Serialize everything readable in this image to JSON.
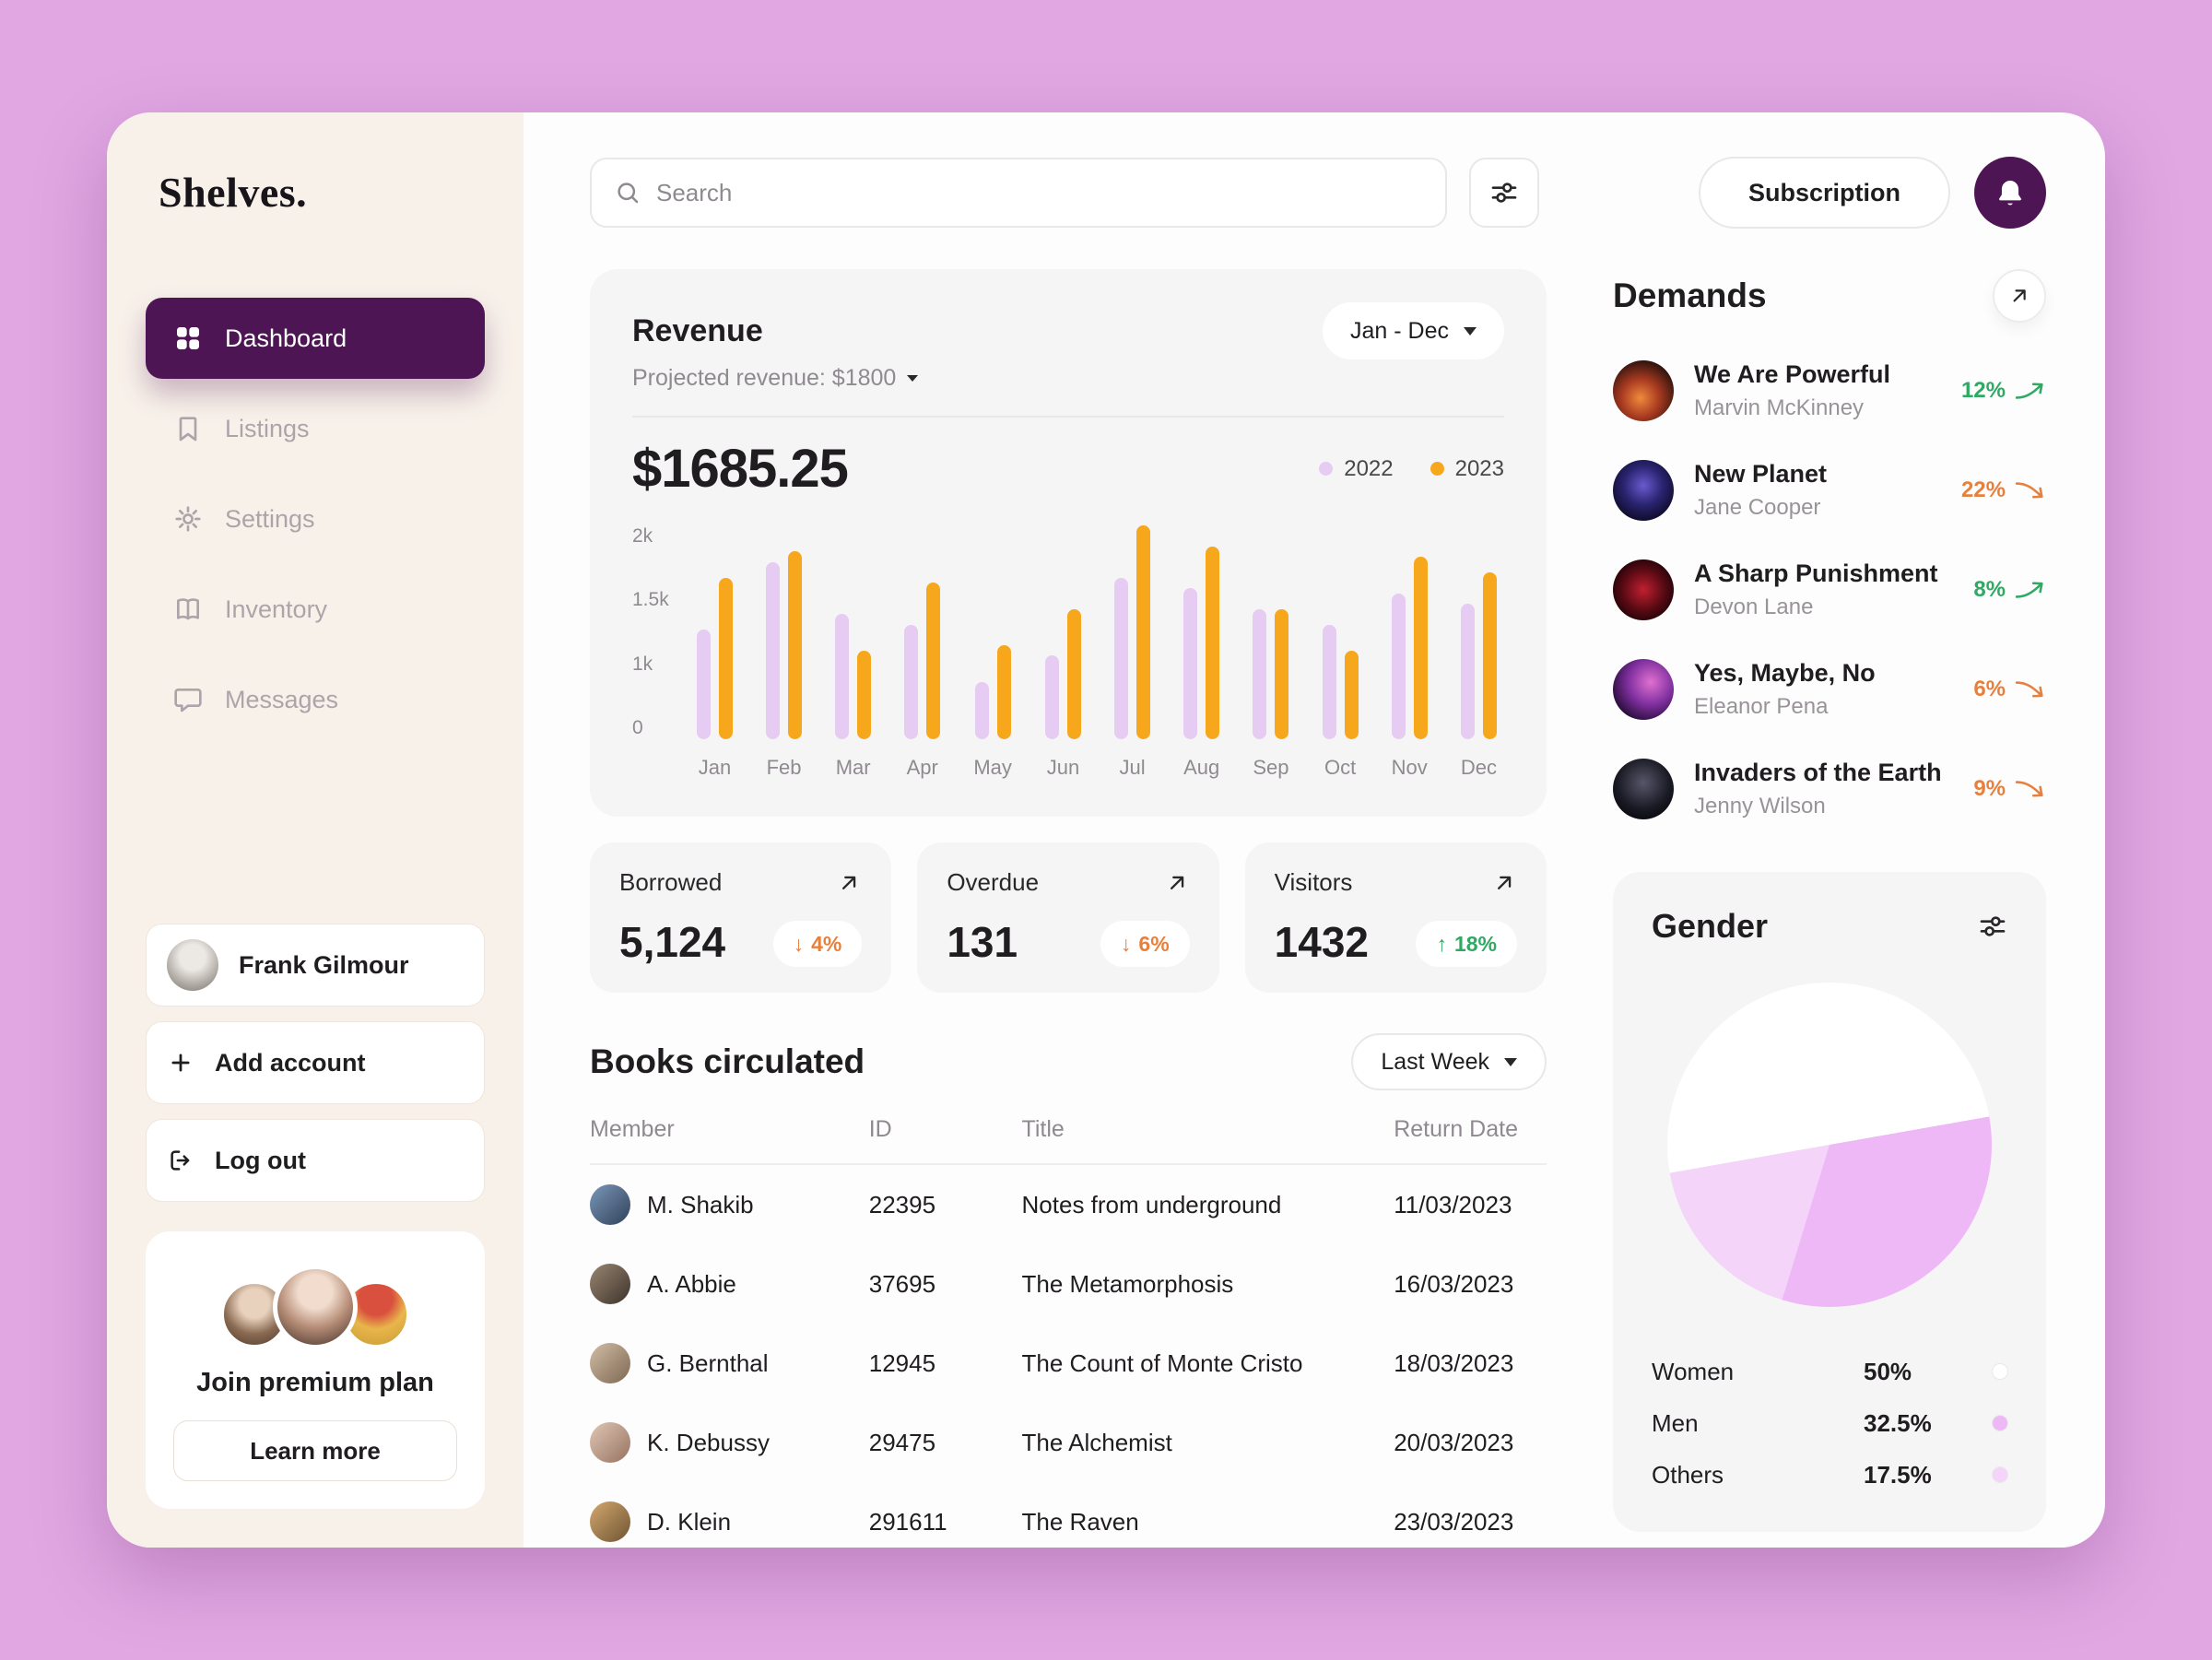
{
  "app": {
    "logo": "Shelves."
  },
  "icons": [
    "search",
    "sliders",
    "bell",
    "arrow-up-right",
    "chevron-down",
    "trend-up",
    "trend-down",
    "dashboard-grid",
    "bookmark",
    "gear",
    "book",
    "chat-bubble",
    "plus",
    "logout"
  ],
  "sidebar": {
    "items": [
      {
        "label": "Dashboard",
        "active": true
      },
      {
        "label": "Listings",
        "active": false
      },
      {
        "label": "Settings",
        "active": false
      },
      {
        "label": "Inventory",
        "active": false
      },
      {
        "label": "Messages",
        "active": false
      }
    ],
    "user": {
      "name": "Frank Gilmour"
    },
    "add_account_label": "Add account",
    "logout_label": "Log out",
    "premium": {
      "title": "Join premium plan",
      "cta": "Learn more"
    }
  },
  "header": {
    "search_placeholder": "Search",
    "subscription_label": "Subscription"
  },
  "revenue": {
    "title": "Revenue",
    "projected_label": "Projected revenue: $1800",
    "range_label": "Jan - Dec",
    "amount": "$1685.25"
  },
  "chart_data": {
    "type": "bar",
    "title": "Revenue",
    "categories": [
      "Jan",
      "Feb",
      "Mar",
      "Apr",
      "May",
      "Jun",
      "Jul",
      "Aug",
      "Sep",
      "Oct",
      "Nov",
      "Dec"
    ],
    "series": [
      {
        "name": "2022",
        "color": "#e6cbf2",
        "values": [
          1050,
          1700,
          1200,
          1100,
          550,
          800,
          1550,
          1450,
          1250,
          1100,
          1400,
          1300
        ]
      },
      {
        "name": "2023",
        "color": "#f6a71c",
        "values": [
          1550,
          1800,
          850,
          1500,
          900,
          1250,
          2050,
          1850,
          1250,
          850,
          1750,
          1600
        ]
      }
    ],
    "ylim": [
      0,
      2050
    ],
    "yticks": [
      "2k",
      "1.5k",
      "1k",
      "0"
    ],
    "grid": false,
    "legend_position": "top-right"
  },
  "stats": [
    {
      "label": "Borrowed",
      "value": "5,124",
      "delta": "4%",
      "direction": "down"
    },
    {
      "label": "Overdue",
      "value": "131",
      "delta": "6%",
      "direction": "down"
    },
    {
      "label": "Visitors",
      "value": "1432",
      "delta": "18%",
      "direction": "up"
    }
  ],
  "books": {
    "title": "Books circulated",
    "filter_label": "Last Week",
    "columns": [
      "Member",
      "ID",
      "Title",
      "Return Date"
    ],
    "rows": [
      {
        "member": "M. Shakib",
        "id": "22395",
        "title": "Notes from underground",
        "date": "11/03/2023"
      },
      {
        "member": "A. Abbie",
        "id": "37695",
        "title": "The Metamorphosis",
        "date": "16/03/2023"
      },
      {
        "member": "G. Bernthal",
        "id": "12945",
        "title": "The Count of Monte Cristo",
        "date": "18/03/2023"
      },
      {
        "member": "K. Debussy",
        "id": "29475",
        "title": "The Alchemist",
        "date": "20/03/2023"
      },
      {
        "member": "D. Klein",
        "id": "291611",
        "title": "The Raven",
        "date": "23/03/2023"
      }
    ]
  },
  "demands": {
    "title": "Demands",
    "items": [
      {
        "title": "We Are Powerful",
        "author": "Marvin McKinney",
        "delta": "12%",
        "direction": "up"
      },
      {
        "title": "New Planet",
        "author": "Jane Cooper",
        "delta": "22%",
        "direction": "down"
      },
      {
        "title": "A Sharp Punishment",
        "author": "Devon Lane",
        "delta": "8%",
        "direction": "up"
      },
      {
        "title": "Yes, Maybe, No",
        "author": "Eleanor Pena",
        "delta": "6%",
        "direction": "down"
      },
      {
        "title": "Invaders of the Earth",
        "author": "Jenny Wilson",
        "delta": "9%",
        "direction": "down"
      }
    ],
    "trend_colors": {
      "up": "#2fa963",
      "down": "#e8803d"
    }
  },
  "gender": {
    "title": "Gender",
    "segments": [
      {
        "label": "Women",
        "value": "50%",
        "color": "#ffffff"
      },
      {
        "label": "Men",
        "value": "32.5%",
        "color": "#eeb8f6"
      },
      {
        "label": "Others",
        "value": "17.5%",
        "color": "#f4d4f9"
      }
    ]
  },
  "theme": {
    "accent": "#4e1554",
    "background": "#e0a7e3",
    "sidebar": "#f8f1ea",
    "card": "#f6f5f6"
  }
}
